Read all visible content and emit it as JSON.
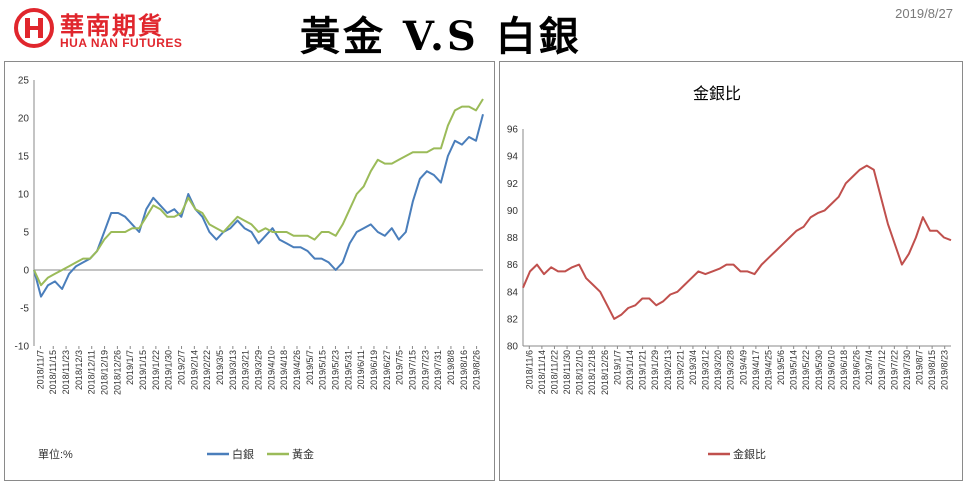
{
  "header": {
    "logo_cn": "華南期貨",
    "logo_en": "HUA NAN FUTURES",
    "title": "黃金 V.S 白銀",
    "date": "2019/8/27"
  },
  "left_chart": {
    "unit_label": "單位:%"
  },
  "colors": {
    "brand": "#e0262d",
    "silver_line": "#4a7ebb",
    "gold_line": "#9bbb59",
    "ratio_line": "#c0504d"
  },
  "chart_data": [
    {
      "type": "line",
      "title": "",
      "xlabel": "",
      "ylabel": "",
      "ylim": [
        -10,
        25
      ],
      "yticks": [
        -10,
        -5,
        0,
        5,
        10,
        15,
        20,
        25
      ],
      "x_tick_labels": [
        "2018/11/7",
        "2018/11/15",
        "2018/11/23",
        "2018/12/3",
        "2018/12/11",
        "2018/12/19",
        "2018/12/26",
        "2019/1/7",
        "2019/1/15",
        "2019/1/22",
        "2019/1/30",
        "2019/2/7",
        "2019/2/14",
        "2019/2/22",
        "2019/3/5",
        "2019/3/13",
        "2019/3/21",
        "2019/3/29",
        "2019/4/10",
        "2019/4/18",
        "2019/4/26",
        "2019/5/7",
        "2019/5/15",
        "2019/5/23",
        "2019/5/31",
        "2019/6/11",
        "2019/6/19",
        "2019/6/27",
        "2019/7/5",
        "2019/7/15",
        "2019/7/23",
        "2019/7/31",
        "2019/8/8",
        "2019/8/16",
        "2019/8/26"
      ],
      "legend": "bottom",
      "series": [
        {
          "name": "白銀",
          "color": "#4a7ebb",
          "values": [
            0.0,
            -3.5,
            -2.0,
            -1.5,
            -2.5,
            -0.5,
            0.5,
            1.0,
            1.5,
            2.5,
            5.0,
            7.5,
            7.5,
            7.0,
            6.0,
            5.0,
            8.0,
            9.5,
            8.5,
            7.5,
            8.0,
            7.0,
            10.0,
            8.0,
            7.0,
            5.0,
            4.0,
            5.0,
            5.5,
            6.5,
            5.5,
            5.0,
            3.5,
            4.5,
            5.5,
            4.0,
            3.5,
            3.0,
            3.0,
            2.5,
            1.5,
            1.5,
            1.0,
            0.0,
            1.0,
            3.5,
            5.0,
            5.5,
            6.0,
            5.0,
            4.5,
            5.5,
            4.0,
            5.0,
            9.0,
            12.0,
            13.0,
            12.5,
            11.5,
            15.0,
            17.0,
            16.5,
            17.5,
            17.0,
            20.5
          ]
        },
        {
          "name": "黃金",
          "color": "#9bbb59",
          "values": [
            0.0,
            -2.0,
            -1.0,
            -0.5,
            0.0,
            0.5,
            1.0,
            1.5,
            1.5,
            2.5,
            4.0,
            5.0,
            5.0,
            5.0,
            5.5,
            5.5,
            7.0,
            8.5,
            8.0,
            7.0,
            7.0,
            7.5,
            9.5,
            8.0,
            7.5,
            6.0,
            5.5,
            5.0,
            6.0,
            7.0,
            6.5,
            6.0,
            5.0,
            5.5,
            5.0,
            5.0,
            5.0,
            4.5,
            4.5,
            4.5,
            4.0,
            5.0,
            5.0,
            4.5,
            6.0,
            8.0,
            10.0,
            11.0,
            13.0,
            14.5,
            14.0,
            14.0,
            14.5,
            15.0,
            15.5,
            15.5,
            15.5,
            16.0,
            16.0,
            19.0,
            21.0,
            21.5,
            21.5,
            21.0,
            22.5
          ]
        }
      ]
    },
    {
      "type": "line",
      "title": "金銀比",
      "xlabel": "",
      "ylabel": "",
      "ylim": [
        80,
        96
      ],
      "yticks": [
        80,
        82,
        84,
        86,
        88,
        90,
        92,
        94,
        96
      ],
      "x_tick_labels": [
        "2018/11/6",
        "2018/11/14",
        "2018/11/22",
        "2018/11/30",
        "2018/12/10",
        "2018/12/18",
        "2018/12/26",
        "2019/1/7",
        "2019/1/14",
        "2019/1/21",
        "2019/1/29",
        "2019/2/13",
        "2019/2/21",
        "2019/3/4",
        "2019/3/12",
        "2019/3/20",
        "2019/3/28",
        "2019/4/9",
        "2019/4/17",
        "2019/4/25",
        "2019/5/6",
        "2019/5/14",
        "2019/5/22",
        "2019/5/30",
        "2019/6/10",
        "2019/6/18",
        "2019/6/26",
        "2019/7/4",
        "2019/7/12",
        "2019/7/22",
        "2019/7/30",
        "2019/8/7",
        "2019/8/15",
        "2019/8/23"
      ],
      "legend": "bottom",
      "series": [
        {
          "name": "金銀比",
          "color": "#c0504d",
          "values": [
            84.3,
            85.5,
            86.0,
            85.3,
            85.8,
            85.5,
            85.5,
            85.8,
            86.0,
            85.0,
            84.5,
            84.0,
            83.0,
            82.0,
            82.3,
            82.8,
            83.0,
            83.5,
            83.5,
            83.0,
            83.3,
            83.8,
            84.0,
            84.5,
            85.0,
            85.5,
            85.3,
            85.5,
            85.7,
            86.0,
            86.0,
            85.5,
            85.5,
            85.3,
            86.0,
            86.5,
            87.0,
            87.5,
            88.0,
            88.5,
            88.8,
            89.5,
            89.8,
            90.0,
            90.5,
            91.0,
            92.0,
            92.5,
            93.0,
            93.3,
            93.0,
            91.0,
            89.0,
            87.5,
            86.0,
            86.8,
            88.0,
            89.5,
            88.5,
            88.5,
            88.0,
            87.8
          ]
        }
      ]
    }
  ]
}
